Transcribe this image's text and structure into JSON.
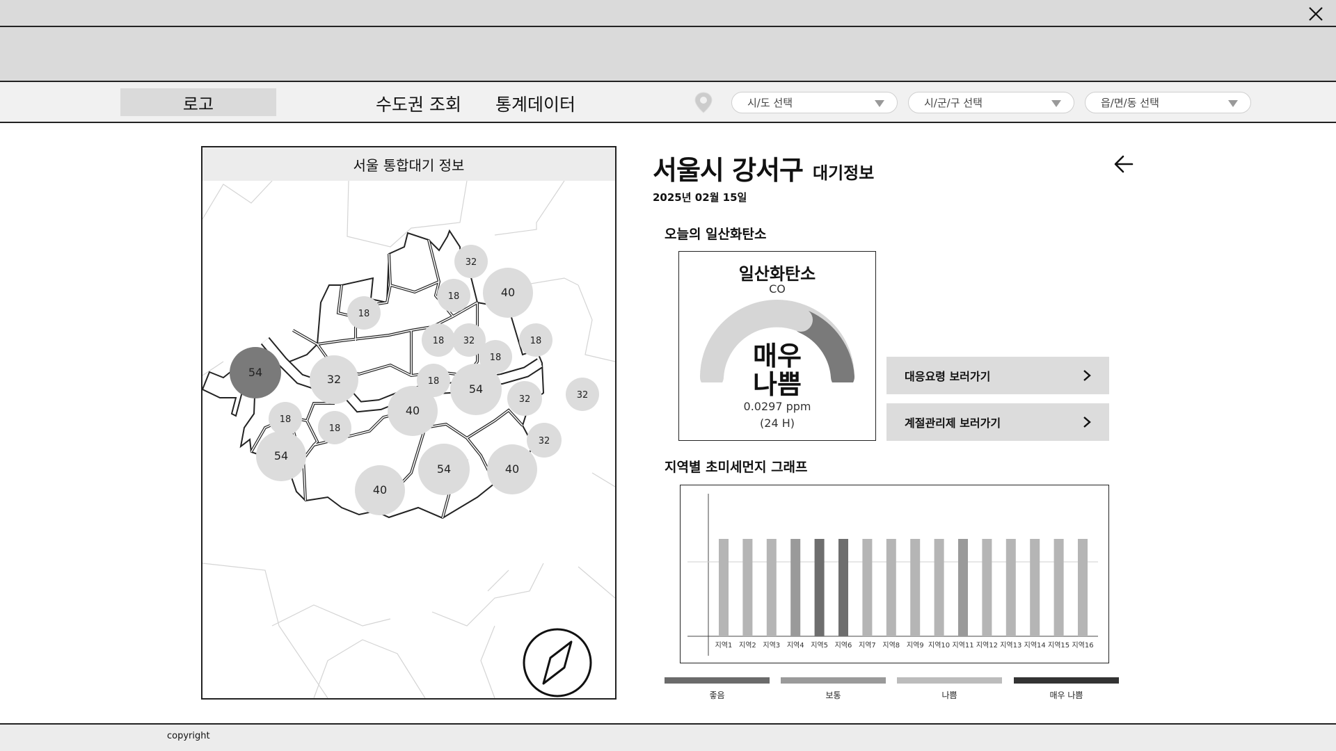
{
  "window": {
    "close_icon": "close-icon"
  },
  "header": {
    "logo": "로고",
    "nav": [
      "수도권 조회",
      "통계데이터"
    ],
    "location_icon": "map-pin-icon",
    "selects": [
      {
        "placeholder": "시/도 선택"
      },
      {
        "placeholder": "시/군/구 선택"
      },
      {
        "placeholder": "읍/면/동 선택"
      }
    ]
  },
  "map": {
    "title": "서울 통합대기 정보",
    "compass_icon": "compass-icon",
    "markers": [
      {
        "value": "32",
        "level": "light"
      },
      {
        "value": "18",
        "level": "light"
      },
      {
        "value": "40",
        "level": "light"
      },
      {
        "value": "18",
        "level": "light"
      },
      {
        "value": "18",
        "level": "light"
      },
      {
        "value": "32",
        "level": "light"
      },
      {
        "value": "18",
        "level": "light"
      },
      {
        "value": "18",
        "level": "light"
      },
      {
        "value": "54",
        "level": "dark"
      },
      {
        "value": "32",
        "level": "light"
      },
      {
        "value": "18",
        "level": "light"
      },
      {
        "value": "54",
        "level": "light"
      },
      {
        "value": "32",
        "level": "light"
      },
      {
        "value": "32",
        "level": "light"
      },
      {
        "value": "40",
        "level": "light"
      },
      {
        "value": "18",
        "level": "light"
      },
      {
        "value": "18",
        "level": "light"
      },
      {
        "value": "54",
        "level": "light"
      },
      {
        "value": "32",
        "level": "light"
      },
      {
        "value": "54",
        "level": "light"
      },
      {
        "value": "40",
        "level": "light"
      },
      {
        "value": "40",
        "level": "light"
      }
    ]
  },
  "detail": {
    "area": "서울시 강서구",
    "sub": "대기정보",
    "date": "2025년 02월 15일",
    "back_icon": "arrow-left-icon",
    "today_title": "오늘의 일산화탄소",
    "gauge": {
      "name": "일산화탄소",
      "code": "CO",
      "level_line1": "매우",
      "level_line2": "나쁨",
      "value": "0.0297 ppm",
      "period": "(24 H)"
    },
    "buttons": [
      "대응요령 보러가기",
      "계절관리제 보러가기"
    ],
    "graph_title": "지역별 초미세먼지 그래프"
  },
  "chart_data": {
    "type": "bar",
    "categories": [
      "지역1",
      "지역2",
      "지역3",
      "지역4",
      "지역5",
      "지역6",
      "지역7",
      "지역8",
      "지역9",
      "지역10",
      "지역11",
      "지역12",
      "지역13",
      "지역14",
      "지역15",
      "지역16"
    ],
    "values": [
      100,
      100,
      100,
      100,
      100,
      100,
      100,
      100,
      100,
      100,
      100,
      100,
      100,
      100,
      100,
      100
    ],
    "bar_colors": [
      "#b5b5b5",
      "#b5b5b5",
      "#b5b5b5",
      "#9a9a9a",
      "#6e6e6e",
      "#6e6e6e",
      "#b5b5b5",
      "#b5b5b5",
      "#b5b5b5",
      "#b5b5b5",
      "#9a9a9a",
      "#b5b5b5",
      "#b5b5b5",
      "#b5b5b5",
      "#b5b5b5",
      "#b5b5b5"
    ],
    "title": "",
    "xlabel": "",
    "ylabel": "",
    "grid": false
  },
  "legend": [
    {
      "label": "좋음",
      "color": "#6b6b6b"
    },
    {
      "label": "보통",
      "color": "#9a9a9a"
    },
    {
      "label": "나쁨",
      "color": "#bcbcbc"
    },
    {
      "label": "매우 나쁨",
      "color": "#333333"
    }
  ],
  "footer": {
    "copyright": "copyright"
  }
}
